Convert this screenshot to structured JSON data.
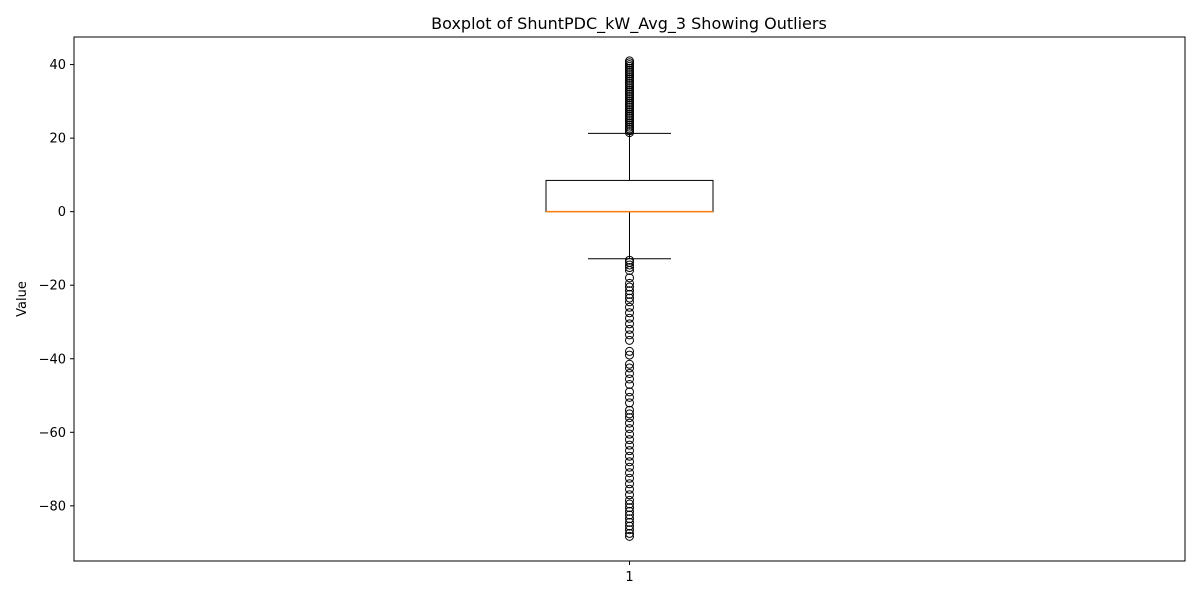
{
  "chart_data": {
    "type": "boxplot",
    "title": "Boxplot of ShuntPDC_kW_Avg_3 Showing Outliers",
    "ylabel": "Value",
    "xlabel": "",
    "ylim": [
      -95,
      47.5
    ],
    "y_ticks": [
      -80,
      -60,
      -40,
      -20,
      0,
      20,
      40
    ],
    "x_ticks": [
      "1"
    ],
    "grid": false,
    "colors": {
      "box": "#000000",
      "median": "#ff7f0e",
      "outlier": "#000000"
    },
    "boxes": [
      {
        "category": "1",
        "whisker_low": -12.8,
        "q1": 0,
        "median": 0,
        "q3": 8.5,
        "whisker_high": 21.3,
        "outliers": [
          21.5,
          22,
          22.5,
          23,
          23.5,
          24,
          24.5,
          25,
          25.5,
          26,
          26.5,
          27,
          27.5,
          28,
          28.5,
          29,
          29.5,
          30,
          30.5,
          31,
          31.5,
          32,
          32.5,
          33,
          33.5,
          34,
          34.5,
          35,
          35.5,
          36,
          36.5,
          37,
          37.5,
          38,
          38.5,
          39,
          39.5,
          40,
          40.5,
          41,
          -13.2,
          -13.8,
          -14.5,
          -15.2,
          -16,
          -18,
          -19.5,
          -20.5,
          -21.5,
          -22.5,
          -23.5,
          -24.5,
          -26,
          -27.5,
          -29,
          -30.5,
          -32,
          -33.5,
          -35,
          -38,
          -39,
          -41.5,
          -42.5,
          -44,
          -45.5,
          -47,
          -49,
          -50.5,
          -52,
          -54,
          -55,
          -56,
          -57.5,
          -59,
          -60.5,
          -62,
          -63.5,
          -65,
          -66.5,
          -68,
          -69.5,
          -71,
          -72.5,
          -74,
          -75.5,
          -77,
          -78.5,
          -79.5,
          -80.5,
          -81.5,
          -82.5,
          -83.5,
          -84.5,
          -85.5,
          -86.5,
          -87.5,
          -88.3
        ]
      }
    ]
  }
}
